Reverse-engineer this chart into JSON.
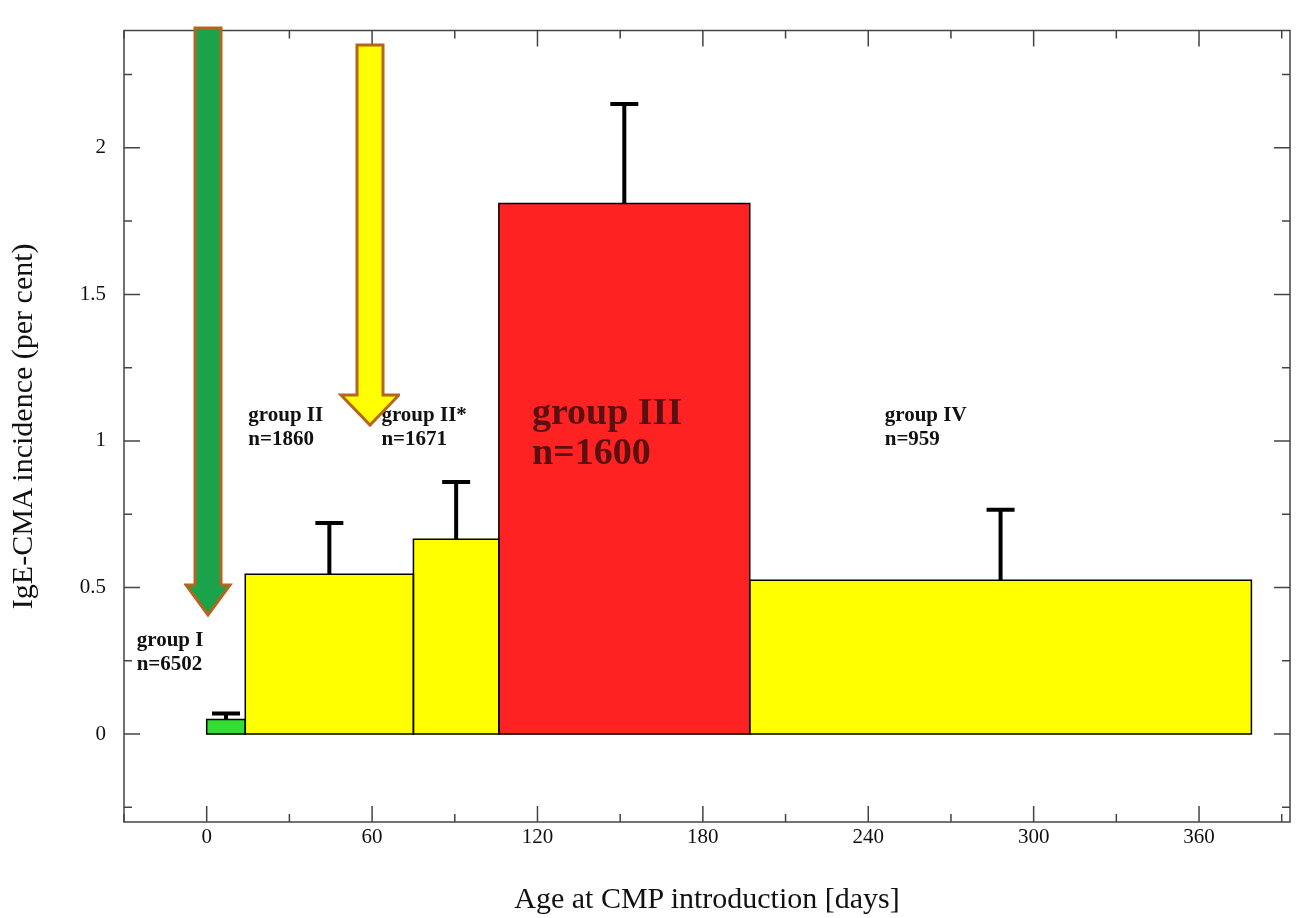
{
  "chart_data": {
    "type": "histogram",
    "xlabel": "Age at CMP introduction [days]",
    "ylabel": "IgE-CMA incidence (per cent)",
    "bins": [
      0,
      14,
      75,
      106,
      197,
      379
    ],
    "values": [
      0.05,
      0.545,
      0.665,
      1.81,
      0.525
    ],
    "colors": [
      "#33dd33",
      "#ffff00",
      "#ffff00",
      "#ff2222",
      "#ffff00"
    ],
    "errors": [
      [
        0.05,
        0.07
      ],
      [
        0.545,
        0.72
      ],
      [
        0.665,
        0.86
      ],
      [
        1.81,
        2.15
      ],
      [
        0.525,
        0.765
      ]
    ],
    "xlim": [
      -30,
      393
    ],
    "xticks": [
      {
        "value": -30,
        "label": null
      },
      0,
      {
        "value": 30,
        "label": null
      },
      60,
      {
        "value": 90,
        "label": null
      },
      120,
      {
        "value": 150,
        "label": null
      },
      180,
      {
        "value": 210,
        "label": null
      },
      240,
      {
        "value": 270,
        "label": null
      },
      300,
      {
        "value": 330,
        "label": null
      },
      360,
      {
        "value": 390,
        "label": null
      }
    ],
    "ylim": [
      -0.3,
      2.4
    ],
    "yticks": [
      {
        "value": -0.25,
        "label": null
      },
      0,
      {
        "value": 0.25,
        "label": null
      },
      0.5,
      {
        "value": 0.75,
        "label": null
      },
      1,
      {
        "value": 1.25,
        "label": null
      },
      1.5,
      {
        "value": 1.75,
        "label": null
      },
      2,
      {
        "value": 2.25,
        "label": null
      }
    ],
    "annotations": [
      "group I\nn=6502",
      "group II\nn=1860",
      "group II*\nn=1671",
      "group III\nn=1600",
      "group IV\nn=959"
    ],
    "grid": false,
    "legend": false
  }
}
